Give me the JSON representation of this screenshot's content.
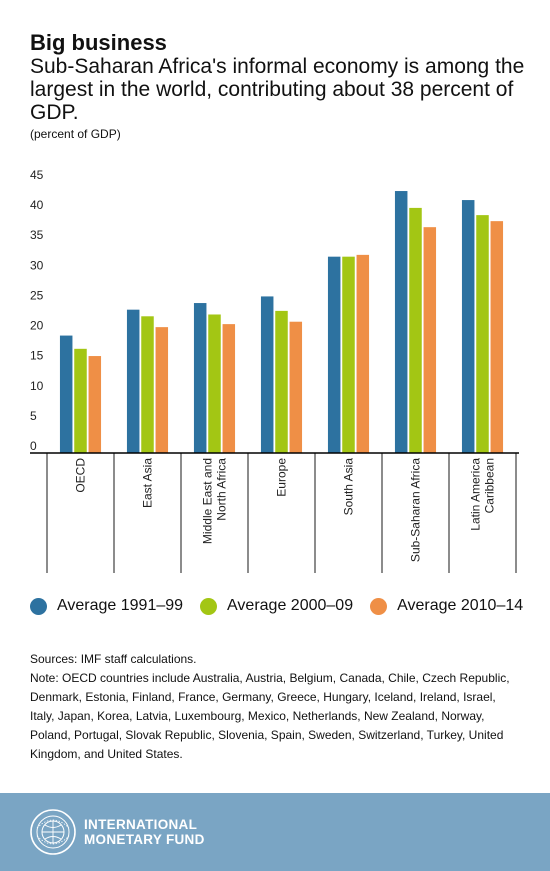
{
  "header": {
    "title": "Big business",
    "subtitle": "Sub-Saharan Africa's informal economy is among the largest in the world, contributing about 38 percent of GDP.",
    "unit": "(percent of GDP)"
  },
  "legend": {
    "items": [
      {
        "label": "Average 1991–99",
        "color": "#2d72a0"
      },
      {
        "label": "Average 2000–09",
        "color": "#a3c614"
      },
      {
        "label": "Average 2010–14",
        "color": "#ef8f46"
      }
    ]
  },
  "notes": {
    "sources": "Sources: IMF staff calculations.",
    "note": "Note: OECD countries include Australia, Austria, Belgium, Canada, Chile, Czech Republic, Denmark, Estonia, Finland, France, Germany, Greece, Hungary, Iceland, Ireland, Israel, Italy, Japan, Korea, Latvia, Luxembourg, Mexico, Netherlands, New Zealand, Norway, Poland, Portugal, Slovak Republic, Slovenia, Spain, Sweden, Switzerland, Turkey, United Kingdom, and United States."
  },
  "footer": {
    "org_line1": "INTERNATIONAL",
    "org_line2": "MONETARY FUND",
    "seal_icon": "imf-seal-icon"
  },
  "chart_data": {
    "type": "bar",
    "categories": [
      [
        "OECD"
      ],
      [
        "East Asia"
      ],
      [
        "Middle East and",
        "North Africa"
      ],
      [
        "Europe"
      ],
      [
        "South Asia"
      ],
      [
        "Sub-Saharan Africa"
      ],
      [
        "Latin America",
        "Caribbean"
      ]
    ],
    "series": [
      {
        "name": "Average 1991–99",
        "color": "#2d72a0",
        "values": [
          19.5,
          23.8,
          24.9,
          26.0,
          32.6,
          43.5,
          42.0
        ]
      },
      {
        "name": "Average 2000–09",
        "color": "#a3c614",
        "values": [
          17.3,
          22.7,
          23.0,
          23.6,
          32.6,
          40.7,
          39.5
        ]
      },
      {
        "name": "Average 2010–14",
        "color": "#ef8f46",
        "values": [
          16.1,
          20.9,
          21.4,
          21.8,
          32.9,
          37.5,
          38.5
        ]
      }
    ],
    "ylim": [
      0,
      45
    ],
    "yticks": [
      0,
      5,
      10,
      15,
      20,
      25,
      30,
      35,
      40,
      45
    ],
    "grid": false,
    "legend_position": "bottom"
  }
}
